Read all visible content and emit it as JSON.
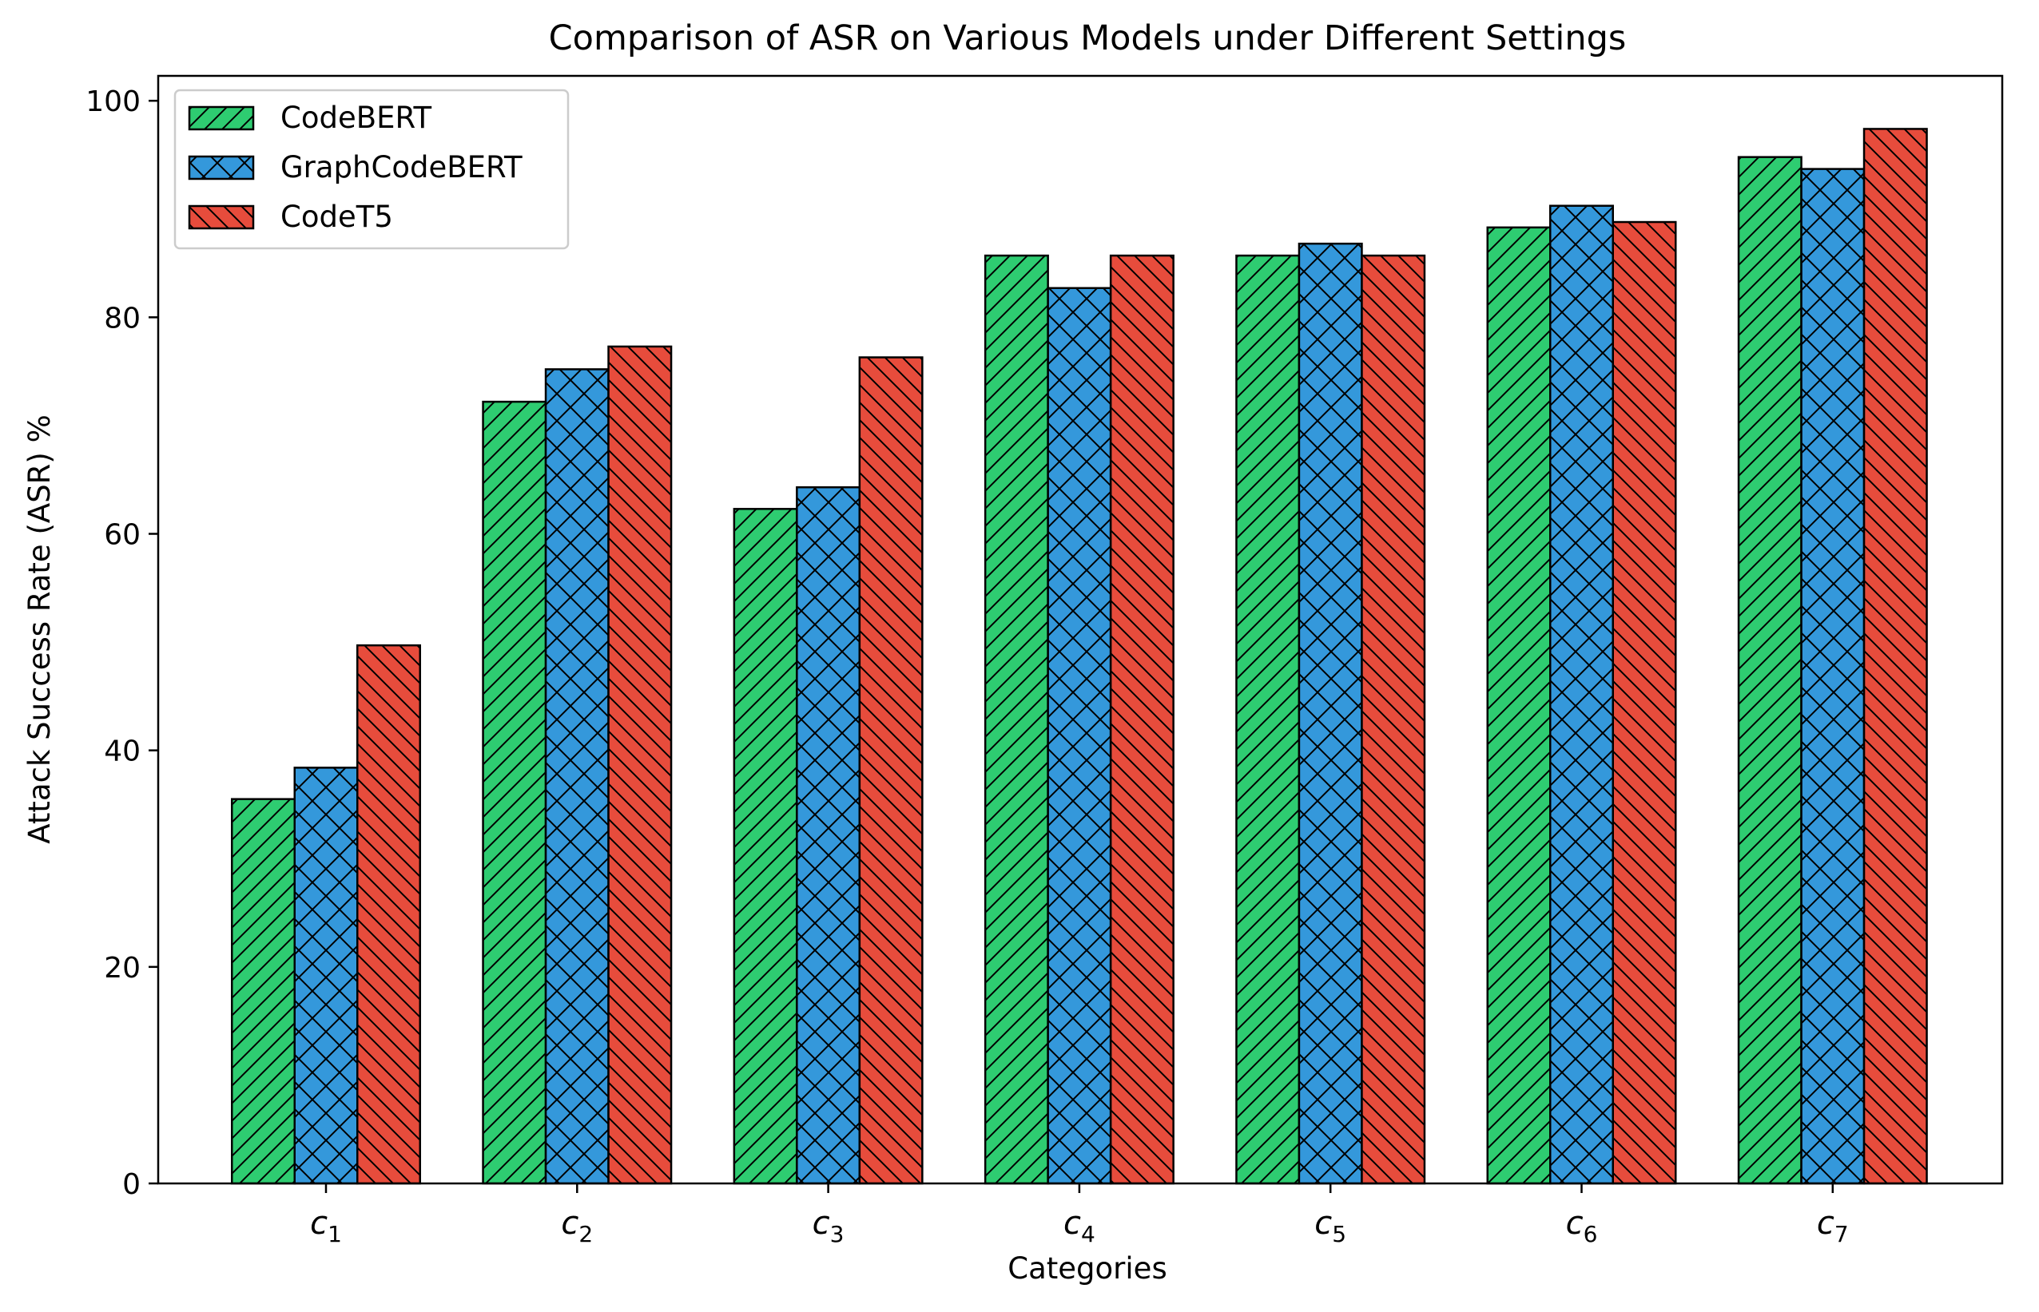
{
  "chart_data": {
    "type": "bar",
    "title": "Comparison of ASR on Various Models under Different Settings",
    "xlabel": "Categories",
    "ylabel": "Attack Success Rate (ASR) %",
    "ylim": [
      0,
      102.3
    ],
    "yticks": [
      0,
      20,
      40,
      60,
      80,
      100
    ],
    "grid": false,
    "legend_placement": "top-left",
    "categories": [
      {
        "base": "c",
        "sub": "1"
      },
      {
        "base": "c",
        "sub": "2"
      },
      {
        "base": "c",
        "sub": "3"
      },
      {
        "base": "c",
        "sub": "4"
      },
      {
        "base": "c",
        "sub": "5"
      },
      {
        "base": "c",
        "sub": "6"
      },
      {
        "base": "c",
        "sub": "7"
      }
    ],
    "series": [
      {
        "name": "CodeBERT",
        "color": "#2ecc71",
        "hatch": "diagonal-forward",
        "values": [
          35.5,
          72.2,
          62.3,
          85.7,
          85.7,
          88.3,
          94.8
        ]
      },
      {
        "name": "GraphCodeBERT",
        "color": "#3498db",
        "hatch": "cross",
        "values": [
          38.4,
          75.2,
          64.3,
          82.7,
          86.8,
          90.3,
          93.7
        ]
      },
      {
        "name": "CodeT5",
        "color": "#e74c3c",
        "hatch": "diagonal-back",
        "values": [
          49.7,
          77.3,
          76.3,
          85.7,
          85.7,
          88.8,
          97.4
        ]
      }
    ]
  }
}
